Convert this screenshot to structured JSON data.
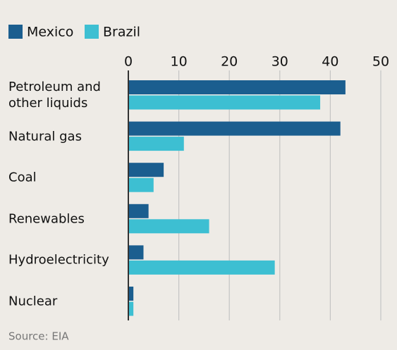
{
  "chart_data": {
    "type": "bar",
    "orientation": "horizontal",
    "categories": [
      "Petroleum and other liquids",
      "Natural gas",
      "Coal",
      "Renewables",
      "Hydroelectricity",
      "Nuclear"
    ],
    "series": [
      {
        "name": "Mexico",
        "color": "#1b5e8f",
        "values": [
          43,
          42,
          7,
          4,
          3,
          1
        ]
      },
      {
        "name": "Brazil",
        "color": "#3dbfd2",
        "values": [
          38,
          11,
          5,
          16,
          29,
          1
        ]
      }
    ],
    "xlim": [
      0,
      50
    ],
    "xticks": [
      0,
      10,
      20,
      30,
      40,
      50
    ],
    "grid": true,
    "source": "Source: EIA"
  }
}
